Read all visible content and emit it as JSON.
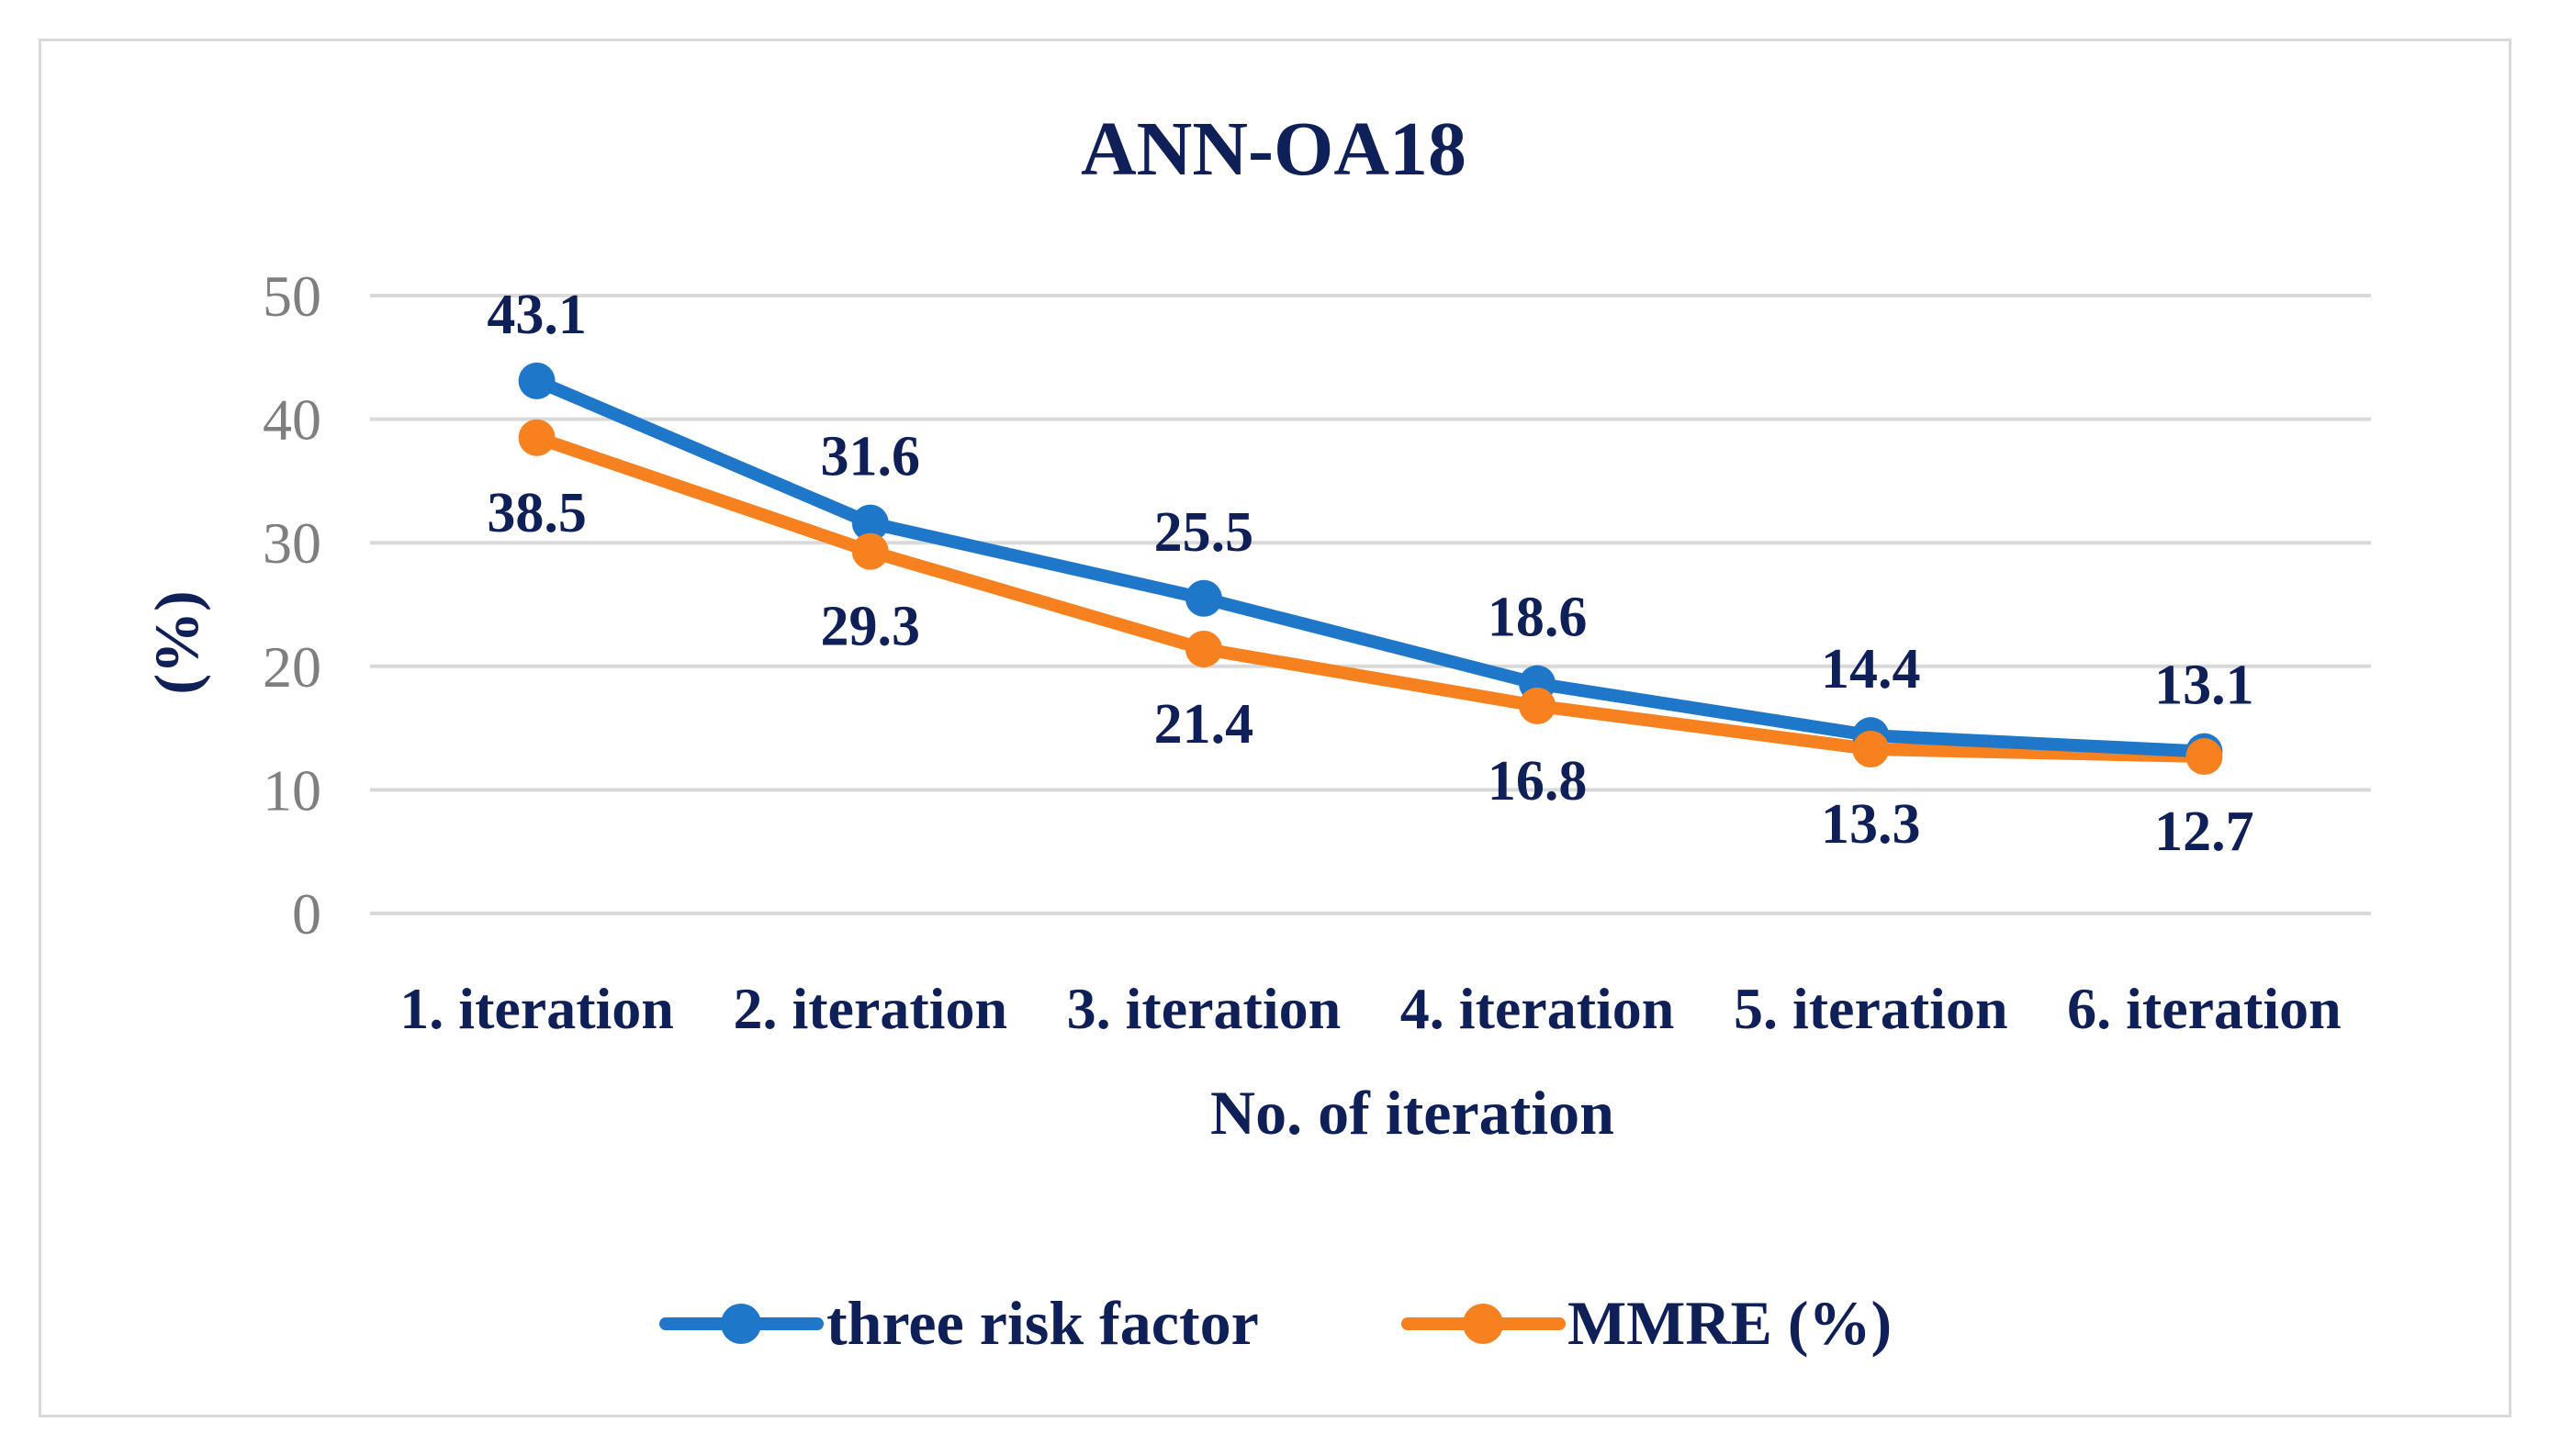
{
  "chart_data": {
    "type": "line",
    "title": "ANN-OA18",
    "xlabel": "No. of iteration",
    "ylabel": "(%)",
    "categories": [
      "1. iteration",
      "2. iteration",
      "3. iteration",
      "4. iteration",
      "5. iteration",
      "6. iteration"
    ],
    "ylim": [
      0,
      50
    ],
    "yticks": [
      0,
      10,
      20,
      30,
      40,
      50
    ],
    "grid": true,
    "legend_position": "bottom",
    "series": [
      {
        "name": "three risk factor",
        "color": "#1f77c9",
        "values": [
          43.1,
          31.6,
          25.5,
          18.6,
          14.4,
          13.1
        ],
        "label_placement": "above"
      },
      {
        "name": "MMRE (%)",
        "color": "#f7801f",
        "values": [
          38.5,
          29.3,
          21.4,
          16.8,
          13.3,
          12.7
        ],
        "label_placement": "below"
      }
    ]
  }
}
